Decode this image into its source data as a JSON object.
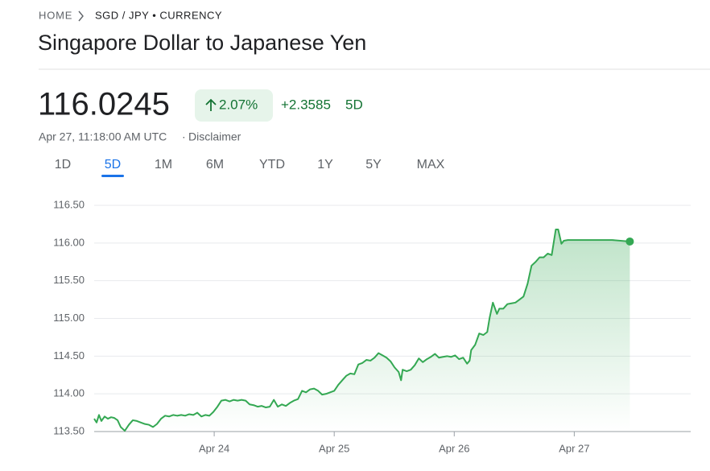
{
  "breadcrumb": {
    "home": "HOME",
    "pair": "SGD / JPY • CURRENCY"
  },
  "title": "Singapore Dollar to Japanese Yen",
  "price": "116.0245",
  "change_percent": "2.07%",
  "change": "+2.3585",
  "change_period": "5D",
  "timestamp": "Apr 27, 11:18:00 AM UTC",
  "separator": "·",
  "disclaimer": "Disclaimer",
  "ranges": [
    "1D",
    "5D",
    "1M",
    "6M",
    "YTD",
    "1Y",
    "5Y",
    "MAX"
  ],
  "selected_range": 1,
  "chart_data": {
    "type": "line",
    "color": "#34a853",
    "grid": true,
    "xlim": [
      0,
      4.97
    ],
    "ylim": [
      113.5,
      116.5
    ],
    "xticks": [
      {
        "value": 1,
        "label": "Apr 24"
      },
      {
        "value": 2,
        "label": "Apr 25"
      },
      {
        "value": 3,
        "label": "Apr 26"
      },
      {
        "value": 4,
        "label": "Apr 27"
      }
    ],
    "yticks": [
      {
        "value": 113.5,
        "label": "113.50"
      },
      {
        "value": 114,
        "label": "114.00"
      },
      {
        "value": 114.5,
        "label": "114.50"
      },
      {
        "value": 115,
        "label": "115.00"
      },
      {
        "value": 115.5,
        "label": "115.50"
      },
      {
        "value": 116,
        "label": "116.00"
      },
      {
        "value": 116.5,
        "label": "116.50"
      }
    ],
    "x": [
      0,
      0.02,
      0.04,
      0.06,
      0.087,
      0.114,
      0.141,
      0.168,
      0.195,
      0.221,
      0.255,
      0.289,
      0.322,
      0.356,
      0.389,
      0.423,
      0.456,
      0.49,
      0.523,
      0.557,
      0.591,
      0.624,
      0.658,
      0.691,
      0.725,
      0.758,
      0.792,
      0.826,
      0.859,
      0.893,
      0.926,
      0.96,
      0.993,
      1.027,
      1.06,
      1.094,
      1.128,
      1.161,
      1.195,
      1.228,
      1.262,
      1.295,
      1.329,
      1.362,
      1.396,
      1.43,
      1.463,
      1.497,
      1.53,
      1.564,
      1.597,
      1.631,
      1.664,
      1.698,
      1.732,
      1.765,
      1.799,
      1.832,
      1.866,
      1.899,
      1.933,
      1.966,
      2.0,
      2.034,
      2.067,
      2.101,
      2.134,
      2.168,
      2.201,
      2.235,
      2.268,
      2.302,
      2.336,
      2.369,
      2.403,
      2.436,
      2.47,
      2.503,
      2.537,
      2.557,
      2.57,
      2.604,
      2.638,
      2.671,
      2.705,
      2.738,
      2.772,
      2.805,
      2.839,
      2.872,
      2.906,
      2.94,
      2.973,
      3.007,
      3.04,
      3.074,
      3.107,
      3.128,
      3.141,
      3.174,
      3.208,
      3.242,
      3.275,
      3.295,
      3.322,
      3.356,
      3.376,
      3.409,
      3.443,
      3.477,
      3.51,
      3.544,
      3.577,
      3.611,
      3.644,
      3.678,
      3.711,
      3.745,
      3.779,
      3.812,
      3.846,
      3.866,
      3.893,
      3.913,
      3.946,
      4.047,
      4.181,
      4.315,
      4.463
    ],
    "values": [
      113.67,
      113.62,
      113.72,
      113.64,
      113.7,
      113.67,
      113.69,
      113.68,
      113.65,
      113.56,
      113.51,
      113.59,
      113.65,
      113.64,
      113.62,
      113.6,
      113.59,
      113.56,
      113.6,
      113.67,
      113.71,
      113.7,
      113.72,
      113.71,
      113.72,
      113.71,
      113.73,
      113.72,
      113.75,
      113.7,
      113.72,
      113.71,
      113.76,
      113.83,
      113.91,
      113.92,
      113.9,
      113.92,
      113.91,
      113.92,
      113.91,
      113.86,
      113.85,
      113.83,
      113.84,
      113.82,
      113.83,
      113.92,
      113.83,
      113.86,
      113.84,
      113.88,
      113.91,
      113.93,
      114.04,
      114.02,
      114.06,
      114.07,
      114.04,
      113.99,
      114.0,
      114.02,
      114.04,
      114.12,
      114.18,
      114.24,
      114.27,
      114.26,
      114.39,
      114.41,
      114.45,
      114.44,
      114.48,
      114.54,
      114.51,
      114.48,
      114.43,
      114.35,
      114.29,
      114.18,
      114.32,
      114.3,
      114.32,
      114.38,
      114.47,
      114.42,
      114.46,
      114.49,
      114.53,
      114.48,
      114.49,
      114.5,
      114.49,
      114.51,
      114.46,
      114.48,
      114.4,
      114.44,
      114.58,
      114.65,
      114.8,
      114.78,
      114.82,
      115.01,
      115.21,
      115.06,
      115.13,
      115.13,
      115.19,
      115.2,
      115.21,
      115.25,
      115.29,
      115.46,
      115.7,
      115.75,
      115.81,
      115.81,
      115.86,
      115.84,
      116.18,
      116.18,
      115.99,
      116.03,
      116.04,
      116.04,
      116.04,
      116.04,
      116.02
    ]
  }
}
